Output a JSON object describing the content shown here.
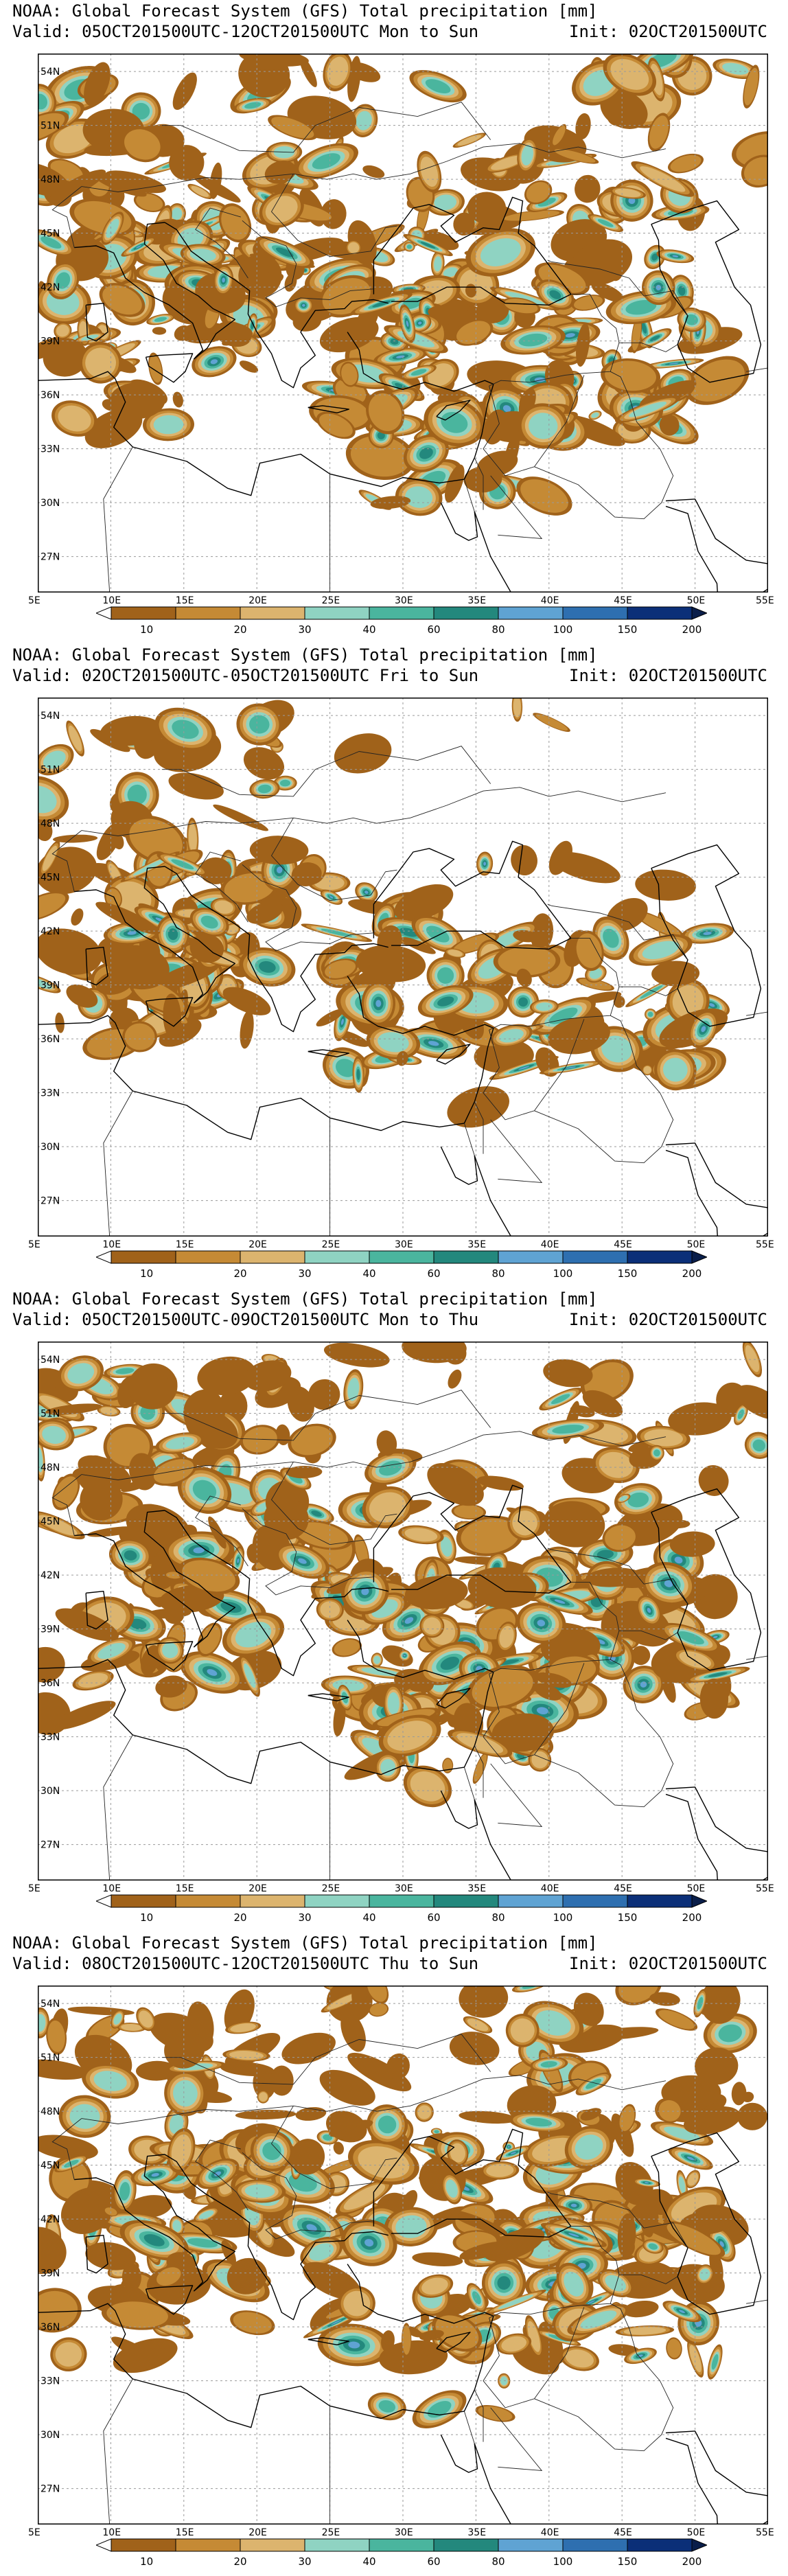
{
  "panels": [
    {
      "title": "NOAA: Global Forecast System (GFS) Total precipitation [mm]",
      "valid": "Valid: 05OCT201500UTC-12OCT201500UTC Mon to Sun",
      "init": "Init: 02OCT201500UTC"
    },
    {
      "title": "NOAA: Global Forecast System (GFS) Total precipitation [mm]",
      "valid": "Valid: 02OCT201500UTC-05OCT201500UTC Fri to Sun",
      "init": "Init: 02OCT201500UTC"
    },
    {
      "title": "NOAA: Global Forecast System (GFS) Total precipitation [mm]",
      "valid": "Valid: 05OCT201500UTC-09OCT201500UTC Mon to Thu",
      "init": "Init: 02OCT201500UTC"
    },
    {
      "title": "NOAA: Global Forecast System (GFS) Total precipitation [mm]",
      "valid": "Valid: 08OCT201500UTC-12OCT201500UTC Thu to Sun",
      "init": "Init: 02OCT201500UTC"
    }
  ],
  "axes": {
    "lon_labels": [
      "5E",
      "10E",
      "15E",
      "20E",
      "25E",
      "30E",
      "35E",
      "40E",
      "45E",
      "50E",
      "55E"
    ],
    "lat_labels": [
      "54N",
      "51N",
      "48N",
      "45N",
      "42N",
      "39N",
      "36N",
      "33N",
      "30N",
      "27N"
    ],
    "lon_range": [
      5,
      55
    ],
    "lat_range": [
      25,
      55
    ]
  },
  "colorbar": {
    "labels": [
      "10",
      "20",
      "30",
      "40",
      "60",
      "80",
      "100",
      "150",
      "200"
    ],
    "colors": [
      "#a0621a",
      "#c58a35",
      "#dcb46e",
      "#8fd3c2",
      "#4ab59e",
      "#23887d",
      "#5fa3d3",
      "#2e6fb0",
      "#0b2f78"
    ]
  },
  "palette": {
    "land_low": "#a0621a",
    "land_mid": "#c58a35",
    "tan": "#dcb46e",
    "teal_light": "#8fd3c2",
    "teal": "#4ab59e",
    "blue": "#2e6fb0"
  }
}
